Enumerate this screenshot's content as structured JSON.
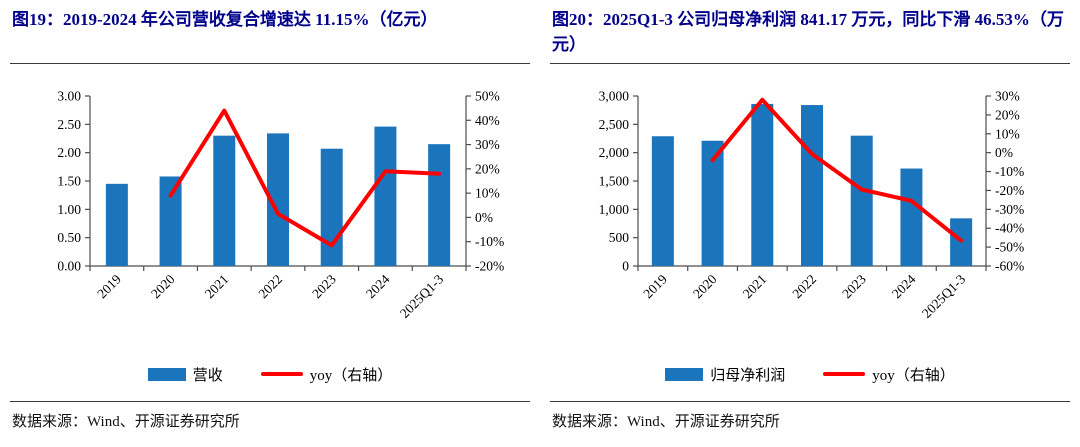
{
  "colors": {
    "bar_blue": "#1B75BC",
    "line_red": "#FF0000",
    "title_navy": "#00008B",
    "axis_gray": "#4d4d4d",
    "text_black": "#000000"
  },
  "figures": [
    {
      "title": "图19：2019-2024 年公司营收复合增速达 11.15%（亿元）",
      "source": "数据来源：Wind、开源证券研究所",
      "legend": [
        {
          "type": "bar",
          "label": "营收"
        },
        {
          "type": "line",
          "label": "yoy（右轴）"
        }
      ],
      "chart_data": {
        "type": "bar+line",
        "title": "2019-2024 年公司营收复合增速达 11.15%（亿元）",
        "unit": "亿元",
        "categories": [
          "2019",
          "2020",
          "2021",
          "2022",
          "2023",
          "2024",
          "2025Q1-3"
        ],
        "series": [
          {
            "name": "营收",
            "type": "bar",
            "axis": "left",
            "values": [
              1.45,
              1.58,
              2.3,
              2.34,
              2.07,
              2.46,
              2.15
            ]
          },
          {
            "name": "yoy（右轴）",
            "type": "line",
            "axis": "right",
            "values": [
              null,
              9.0,
              44.0,
              1.5,
              -11.5,
              19.0,
              18.0
            ]
          }
        ],
        "left_axis": {
          "min": 0,
          "max": 3,
          "ticks": [
            "0.00",
            "0.50",
            "1.00",
            "1.50",
            "2.00",
            "2.50",
            "3.00"
          ]
        },
        "right_axis": {
          "min": -20,
          "max": 50,
          "ticks": [
            "-20%",
            "-10%",
            "0%",
            "10%",
            "20%",
            "30%",
            "40%",
            "50%"
          ]
        },
        "grid": false,
        "legend_position": "bottom"
      }
    },
    {
      "title": "图20：2025Q1-3 公司归母净利润 841.17 万元，同比下滑 46.53%（万元）",
      "source": "数据来源：Wind、开源证券研究所",
      "legend": [
        {
          "type": "bar",
          "label": "归母净利润"
        },
        {
          "type": "line",
          "label": "yoy（右轴）"
        }
      ],
      "chart_data": {
        "type": "bar+line",
        "title": "2025Q1-3 公司归母净利润 841.17 万元，同比下滑 46.53%（万元）",
        "unit": "万元",
        "categories": [
          "2019",
          "2020",
          "2021",
          "2022",
          "2023",
          "2024",
          "2025Q1-3"
        ],
        "series": [
          {
            "name": "归母净利润",
            "type": "bar",
            "axis": "left",
            "values": [
              2290,
              2210,
              2860,
              2840,
              2300,
              1720,
              841.17
            ]
          },
          {
            "name": "yoy（右轴）",
            "type": "line",
            "axis": "right",
            "values": [
              null,
              -4.0,
              28.0,
              -0.7,
              -19.5,
              -25.5,
              -46.53
            ]
          }
        ],
        "left_axis": {
          "min": 0,
          "max": 3000,
          "ticks": [
            "0",
            "500",
            "1,000",
            "1,500",
            "2,000",
            "2,500",
            "3,000"
          ]
        },
        "right_axis": {
          "min": -60,
          "max": 30,
          "ticks": [
            "-60%",
            "-50%",
            "-40%",
            "-30%",
            "-20%",
            "-10%",
            "0%",
            "10%",
            "20%",
            "30%"
          ]
        },
        "grid": false,
        "legend_position": "bottom"
      }
    }
  ]
}
